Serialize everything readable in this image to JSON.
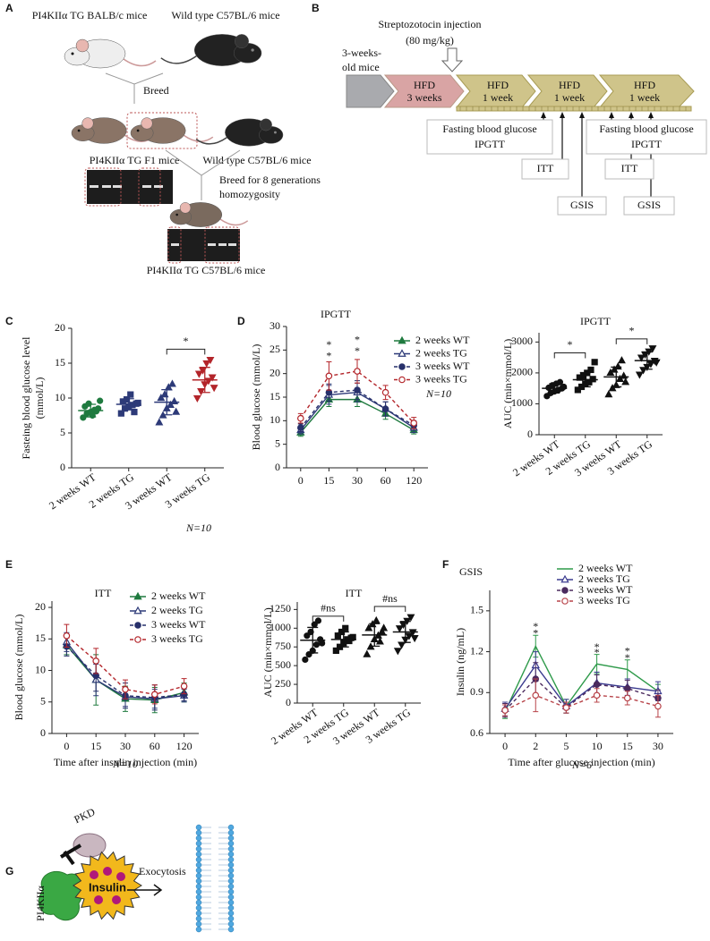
{
  "figure": {
    "panel_labels": [
      "A",
      "B",
      "C",
      "D",
      "E",
      "F",
      "G"
    ],
    "panel_a": {
      "top_left": "PI4KIIα TG BALB/c mice",
      "top_right": "Wild type C57BL/6 mice",
      "breed": "Breed",
      "f1": "PI4KIIα TG F1 mice",
      "wild": "Wild type C57BL/6 mice",
      "breed_generations": [
        "Breed for 8 generations",
        "homozygosity"
      ],
      "result": "PI4KIIα TG C57BL/6 mice"
    },
    "panel_b": {
      "injection": [
        "Streptozotocin injection",
        "(80 mg/kg)"
      ],
      "start": [
        "3-weeks-",
        "old mice"
      ],
      "stages": [
        [
          "HFD",
          "3 weeks"
        ],
        [
          "HFD",
          "1 week"
        ],
        [
          "HFD",
          "1 week"
        ],
        [
          "HFD",
          "1 week"
        ]
      ],
      "tests_1": [
        "Fasting blood glucose",
        "IPGTT"
      ],
      "itt_1": "ITT",
      "gsis_1": "GSIS",
      "tests_2": [
        "Fasting blood glucose",
        "IPGTT"
      ],
      "itt_2": "ITT",
      "gsis_2": "GSIS"
    },
    "panel_g": {
      "pkd": "PKD",
      "kinase": "PI4KIIα",
      "insulin": "Insulin",
      "process": "Exocytosis"
    }
  },
  "chart_data": [
    {
      "type": "dot",
      "ylabel": [
        "Fasteing blood glucose level",
        "(mmol/L)"
      ],
      "categories": [
        "2 weeks WT",
        "2 weeks TG",
        "3 weeks WT",
        "3 weeks TG"
      ],
      "colors": [
        "#1f7a3f",
        "#2d3a78",
        "#2d3a78",
        "#b3252a"
      ],
      "markers": [
        "circle",
        "square",
        "triangle",
        "tri-down"
      ],
      "points": [
        [
          7.2,
          7.8,
          8.0,
          8.3,
          8.5,
          8.8,
          9.2,
          7.5,
          8.1,
          9.6
        ],
        [
          7.8,
          8.5,
          8.8,
          9.0,
          9.2,
          9.5,
          9.8,
          10.5,
          8.0,
          9.3
        ],
        [
          6.5,
          7.5,
          8.5,
          9.0,
          9.5,
          10.0,
          10.5,
          11.5,
          12.0,
          8.0
        ],
        [
          10.0,
          11.0,
          12.0,
          12.5,
          13.0,
          13.5,
          14.0,
          15.0,
          15.5,
          11.5
        ]
      ],
      "means": [
        8.2,
        9.1,
        9.4,
        12.6
      ],
      "sd": [
        0.9,
        0.8,
        1.8,
        1.8
      ],
      "ylim": [
        0,
        20
      ],
      "yticks": [
        0,
        5,
        10,
        15,
        20
      ],
      "significance": [
        {
          "text": "*",
          "color": "#e8262b"
        }
      ],
      "note": "N=10"
    },
    {
      "type": "line",
      "title": "IPGTT",
      "ylabel": "Blood glucose (mmol/L)",
      "categories": [
        "0",
        "15",
        "30",
        "60",
        "120"
      ],
      "series": [
        {
          "name": "2 weeks WT",
          "color": "#1f7a3f",
          "dashed": false,
          "marker": "triangle",
          "filled": true,
          "values": [
            7.5,
            14.5,
            14.5,
            11.5,
            8.0
          ],
          "errors": [
            0.8,
            1.5,
            1.5,
            1.2,
            0.8
          ]
        },
        {
          "name": "2 weeks TG",
          "color": "#2d3a78",
          "dashed": false,
          "marker": "triangle",
          "filled": false,
          "values": [
            8.0,
            15.5,
            16.0,
            12.5,
            8.5
          ],
          "errors": [
            0.8,
            2.0,
            2.0,
            1.5,
            1.0
          ]
        },
        {
          "name": "3 weeks WT",
          "color": "#27306b",
          "dashed": true,
          "marker": "circle",
          "filled": true,
          "values": [
            8.5,
            16.0,
            16.5,
            12.5,
            9.0
          ],
          "errors": [
            0.8,
            1.8,
            2.0,
            1.5,
            1.0
          ]
        },
        {
          "name": "3 weeks TG",
          "color": "#b3252a",
          "dashed": true,
          "marker": "circle",
          "filled": false,
          "values": [
            10.5,
            19.5,
            20.5,
            16.0,
            9.5
          ],
          "errors": [
            1.0,
            3.0,
            2.5,
            1.5,
            1.2
          ]
        }
      ],
      "ylim": [
        0,
        30
      ],
      "yticks": [
        0,
        5,
        10,
        15,
        20,
        25,
        30
      ],
      "annotations": [
        {
          "text": "*",
          "color": "#e8262b"
        },
        {
          "text": "*",
          "color": "#4a4fb0"
        },
        {
          "text": "*",
          "color": "#e8262b"
        },
        {
          "text": "*",
          "color": "#4a4fb0"
        }
      ],
      "note": "N=10"
    },
    {
      "type": "dot",
      "title": "IPGTT",
      "ylabel": "AUC (min×mmol/L)",
      "categories": [
        "2 weeks WT",
        "2 weeks TG",
        "3 weeks WT",
        "3 weeks TG"
      ],
      "colors": [
        "#111111",
        "#111111",
        "#111111",
        "#111111"
      ],
      "markers": [
        "circle",
        "square",
        "triangle",
        "tri-down"
      ],
      "points": [
        [
          1250,
          1350,
          1400,
          1450,
          1500,
          1520,
          1600,
          1650,
          1700,
          1550
        ],
        [
          1450,
          1550,
          1650,
          1700,
          1800,
          1850,
          1900,
          2000,
          2100,
          2350
        ],
        [
          1300,
          1500,
          1600,
          1800,
          1900,
          2000,
          2100,
          2200,
          2400,
          1700
        ],
        [
          1950,
          2100,
          2200,
          2300,
          2400,
          2500,
          2600,
          2700,
          2800,
          2350
        ]
      ],
      "means": [
        1500,
        1780,
        1870,
        2400
      ],
      "sd": [
        150,
        230,
        320,
        280
      ],
      "ylim": [
        0,
        3300
      ],
      "yticks": [
        0,
        1000,
        2000,
        3000
      ],
      "significance": [
        {
          "text": "*",
          "color": "#4a4fb0"
        },
        {
          "text": "*",
          "color": "#e8262b"
        }
      ]
    },
    {
      "type": "line",
      "title": "ITT",
      "ylabel": "Blood glucose (mmol/L)",
      "xlabel": "Time after insulin injection (min)",
      "categories": [
        "0",
        "15",
        "30",
        "60",
        "120"
      ],
      "series": [
        {
          "name": "2 weeks WT",
          "color": "#1f7a3f",
          "dashed": false,
          "marker": "triangle",
          "filled": true,
          "values": [
            14.0,
            8.5,
            5.5,
            5.3,
            6.5
          ],
          "errors": [
            1.5,
            4.0,
            2.0,
            2.0,
            1.5
          ]
        },
        {
          "name": "2 weeks TG",
          "color": "#2d3a78",
          "dashed": false,
          "marker": "triangle",
          "filled": false,
          "values": [
            14.5,
            8.5,
            5.8,
            5.5,
            6.0
          ],
          "errors": [
            1.5,
            2.5,
            1.5,
            1.5,
            1.0
          ]
        },
        {
          "name": "3 weeks WT",
          "color": "#27306b",
          "dashed": true,
          "marker": "circle",
          "filled": true,
          "values": [
            13.8,
            9.2,
            6.0,
            5.7,
            6.2
          ],
          "errors": [
            1.5,
            2.5,
            2.0,
            2.0,
            1.0
          ]
        },
        {
          "name": "3 weeks TG",
          "color": "#b3252a",
          "dashed": true,
          "marker": "circle",
          "filled": false,
          "values": [
            15.5,
            11.5,
            7.0,
            6.2,
            7.5
          ],
          "errors": [
            1.8,
            2.0,
            1.5,
            1.5,
            1.2
          ]
        }
      ],
      "ylim": [
        0,
        21
      ],
      "yticks": [
        0,
        5,
        10,
        15,
        20
      ],
      "note": "N=10"
    },
    {
      "type": "dot",
      "title": "ITT",
      "ylabel": "AUC (min×mmol/L)",
      "categories": [
        "2 weeks WT",
        "2 weeks TG",
        "3 weeks WT",
        "3 weeks TG"
      ],
      "colors": [
        "#111111",
        "#111111",
        "#111111",
        "#111111"
      ],
      "markers": [
        "circle",
        "square",
        "triangle",
        "tri-down"
      ],
      "points": [
        [
          580,
          650,
          700,
          780,
          850,
          900,
          950,
          1050,
          1100,
          800
        ],
        [
          700,
          750,
          800,
          850,
          870,
          900,
          950,
          1000,
          830,
          880
        ],
        [
          650,
          750,
          850,
          900,
          950,
          1000,
          1050,
          1100,
          820,
          1000
        ],
        [
          700,
          780,
          850,
          900,
          950,
          1000,
          1050,
          1100,
          1150,
          870
        ]
      ],
      "means": [
        840,
        850,
        910,
        950
      ],
      "sd": [
        170,
        100,
        150,
        140
      ],
      "ylim": [
        0,
        1350
      ],
      "yticks": [
        0,
        250,
        500,
        750,
        1000,
        1250
      ],
      "significance": [
        {
          "text": "#ns",
          "color": "#111111"
        },
        {
          "text": "#ns",
          "color": "#111111"
        }
      ]
    },
    {
      "type": "line",
      "title": "GSIS",
      "ylabel": "Insulin (ng/mL)",
      "xlabel": "Time after glucose injection (min)",
      "categories": [
        "0",
        "2",
        "5",
        "10",
        "15",
        "30"
      ],
      "series": [
        {
          "name": "2 weeks WT",
          "color": "#2e9a4a",
          "dashed": false,
          "marker": "none",
          "filled": true,
          "values": [
            0.76,
            1.24,
            0.8,
            1.11,
            1.07,
            0.91
          ],
          "errors": [
            0.05,
            0.08,
            0.05,
            0.07,
            0.07,
            0.05
          ]
        },
        {
          "name": "2 weeks TG",
          "color": "#3b3b8f",
          "dashed": false,
          "marker": "triangle",
          "filled": false,
          "values": [
            0.78,
            1.1,
            0.8,
            0.97,
            0.94,
            0.91
          ],
          "errors": [
            0.05,
            0.1,
            0.05,
            0.08,
            0.06,
            0.07
          ]
        },
        {
          "name": "3 weeks WT",
          "color": "#4b2a5e",
          "dashed": true,
          "marker": "circle",
          "filled": true,
          "values": [
            0.77,
            1.0,
            0.79,
            0.96,
            0.93,
            0.86
          ],
          "errors": [
            0.05,
            0.12,
            0.04,
            0.07,
            0.06,
            0.06
          ]
        },
        {
          "name": "3 weeks TG",
          "color": "#b8444a",
          "dashed": true,
          "marker": "circle",
          "filled": false,
          "values": [
            0.77,
            0.88,
            0.79,
            0.88,
            0.86,
            0.8
          ],
          "errors": [
            0.04,
            0.12,
            0.04,
            0.05,
            0.05,
            0.08
          ]
        }
      ],
      "ylim": [
        0.6,
        1.65
      ],
      "yticks": [
        0.6,
        0.9,
        1.2,
        1.5
      ],
      "annotations": [
        {
          "text": "*",
          "color": "#4a4fb0"
        },
        {
          "text": "*",
          "color": "#e8262b"
        },
        {
          "text": "*",
          "color": "#4a4fb0"
        },
        {
          "text": "*",
          "color": "#e8262b"
        },
        {
          "text": "*",
          "color": "#4a4fb0"
        },
        {
          "text": "*",
          "color": "#e8262b"
        }
      ],
      "note": "N=6"
    }
  ]
}
